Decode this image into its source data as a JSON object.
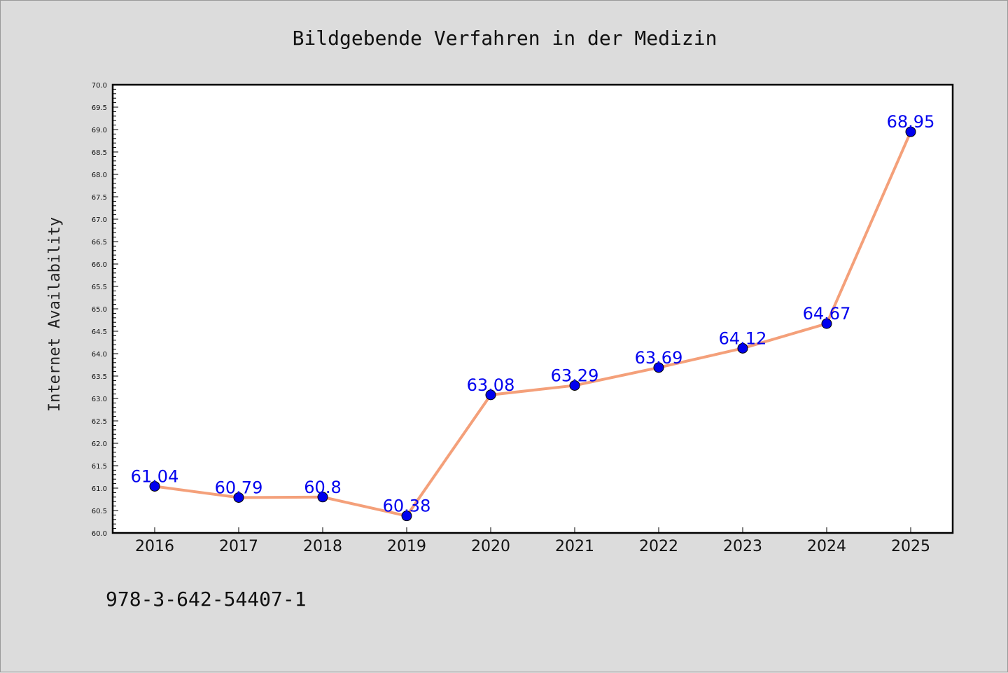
{
  "chart_data": {
    "type": "line",
    "title": "Bildgebende Verfahren in der Medizin",
    "xlabel": "",
    "ylabel": "Internet Availability",
    "categories": [
      "2016",
      "2017",
      "2018",
      "2019",
      "2020",
      "2021",
      "2022",
      "2023",
      "2024",
      "2025"
    ],
    "series": [
      {
        "values": [
          61.04,
          60.79,
          60.8,
          60.38,
          63.08,
          63.29,
          63.69,
          64.12,
          64.67,
          68.95
        ],
        "labels": [
          "61.04",
          "60.79",
          "60.8",
          "60.38",
          "63.08",
          "63.29",
          "63.69",
          "64.12",
          "64.67",
          "68.95"
        ],
        "line_color": "#f4a07a",
        "marker_color": "#0000ee"
      }
    ],
    "ylim": [
      60.0,
      70.0
    ],
    "yticks": [
      "60.0",
      "60.5",
      "61.0",
      "61.5",
      "62.0",
      "62.5",
      "63.0",
      "63.5",
      "64.0",
      "64.5",
      "65.0",
      "65.5",
      "66.0",
      "66.5",
      "67.0",
      "67.5",
      "68.0",
      "68.5",
      "69.0",
      "69.5",
      "70.0"
    ],
    "grid": false,
    "legend": "none"
  },
  "footer": {
    "text": "978-3-642-54407-1"
  },
  "colors": {
    "background": "#dcdcdc",
    "plot_background": "#ffffff",
    "line": "#f4a07a",
    "marker": "#0000ee",
    "label": "#0000ee"
  }
}
